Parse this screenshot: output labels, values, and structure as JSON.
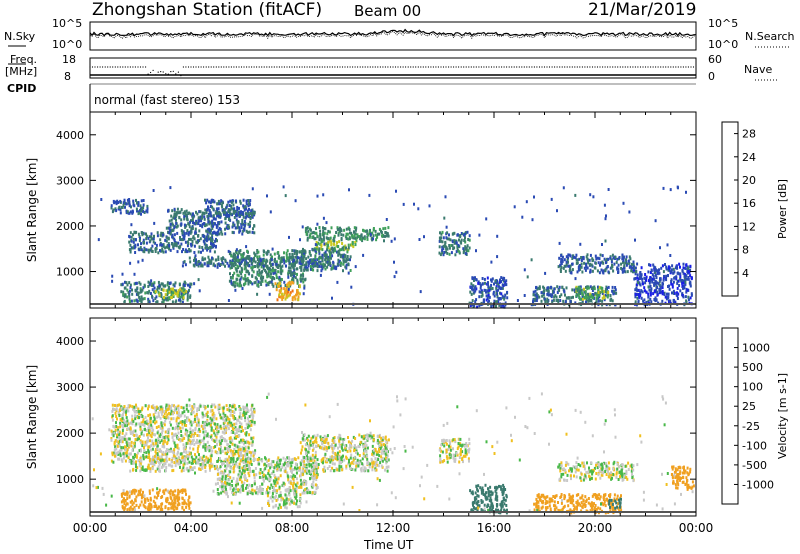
{
  "header": {
    "title": "Zhongshan Station (fitACF)",
    "beam": "Beam 00",
    "date": "21/Mar/2019"
  },
  "status_panel": {
    "nsky_label": "N.Sky",
    "nsearch_label": "N.Search",
    "left_ticks": [
      "10^5",
      "10^0"
    ],
    "right_ticks": [
      "10^5",
      "10^0"
    ]
  },
  "freq_panel": {
    "freq_label": "Freq.",
    "freq_unit": "[MHz]",
    "nave_label": "Nave",
    "cpid_label": "CPID",
    "left_ticks": [
      "18",
      "8"
    ],
    "right_ticks": [
      "60",
      "0"
    ]
  },
  "mode_text": "normal (fast stereo) 153",
  "colors": {
    "power_scale": [
      "#1a1ee6",
      "#2a4ab4",
      "#3a7a6e",
      "#3fa05a",
      "#c9c820",
      "#f0a020",
      "#f07010",
      "#e01010"
    ],
    "velocity_scale": [
      "#e01010",
      "#f07010",
      "#f0a020",
      "#f0c020",
      "#c8c8c8",
      "#c8c8c8",
      "#48b848",
      "#3a7a6e",
      "#2a4ab4",
      "#1a2ea8"
    ]
  },
  "chart_data": [
    {
      "type": "heatmap",
      "name": "power",
      "ylabel": "Slant Range [km]",
      "yticks": [
        "1000",
        "2000",
        "3000",
        "4000"
      ],
      "ylim": [
        200,
        4500
      ],
      "colorbar_label": "Power [dB]",
      "colorbar_ticks": [
        "4",
        "8",
        "12",
        "16",
        "20",
        "24",
        "28"
      ],
      "colorbar_range": [
        0,
        30
      ],
      "echo_regions": [
        {
          "t": [
            0.8,
            2.3
          ],
          "r": [
            2300,
            2600
          ],
          "v": 7
        },
        {
          "t": [
            1.5,
            5.0
          ],
          "r": [
            1450,
            1900
          ],
          "v": 8
        },
        {
          "t": [
            3.0,
            6.5
          ],
          "r": [
            1850,
            2400
          ],
          "v": 8
        },
        {
          "t": [
            4.5,
            6.5
          ],
          "r": [
            2250,
            2600
          ],
          "v": 7
        },
        {
          "t": [
            1.2,
            4.0
          ],
          "r": [
            350,
            800
          ],
          "v": 9
        },
        {
          "t": [
            2.5,
            3.8
          ],
          "r": [
            450,
            650
          ],
          "v": 15
        },
        {
          "t": [
            5.5,
            8.5
          ],
          "r": [
            700,
            1500
          ],
          "v": 10
        },
        {
          "t": [
            7.3,
            8.3
          ],
          "r": [
            400,
            800
          ],
          "v": 20
        },
        {
          "t": [
            3.5,
            9.5
          ],
          "r": [
            1150,
            1350
          ],
          "v": 8
        },
        {
          "t": [
            8.5,
            11.8
          ],
          "r": [
            1700,
            2000
          ],
          "v": 11
        },
        {
          "t": [
            8.8,
            10.5
          ],
          "r": [
            1500,
            1700
          ],
          "v": 15
        },
        {
          "t": [
            8.3,
            10.3
          ],
          "r": [
            1050,
            1550
          ],
          "v": 9
        },
        {
          "t": [
            13.8,
            15.0
          ],
          "r": [
            1400,
            1900
          ],
          "v": 9
        },
        {
          "t": [
            15.0,
            16.5
          ],
          "r": [
            250,
            900
          ],
          "v": 6
        },
        {
          "t": [
            17.5,
            20.8
          ],
          "r": [
            300,
            700
          ],
          "v": 8
        },
        {
          "t": [
            19.2,
            20.5
          ],
          "r": [
            400,
            700
          ],
          "v": 14
        },
        {
          "t": [
            18.5,
            21.5
          ],
          "r": [
            1000,
            1400
          ],
          "v": 7
        },
        {
          "t": [
            21.5,
            23.8
          ],
          "r": [
            300,
            1200
          ],
          "v": 5
        }
      ]
    },
    {
      "type": "heatmap",
      "name": "velocity",
      "ylabel": "Slant Range [km]",
      "yticks": [
        "1000",
        "2000",
        "3000",
        "4000"
      ],
      "ylim": [
        200,
        4500
      ],
      "colorbar_label": "Velocity [m s-1]",
      "colorbar_ticks": [
        "-1000",
        "-500",
        "-100",
        "-25",
        "25",
        "100",
        "500",
        "1000"
      ],
      "colorbar_range": [
        -1250,
        1250
      ],
      "echo_regions": [
        {
          "t": [
            0.8,
            6.5
          ],
          "r": [
            1400,
            2650
          ],
          "v": 0
        },
        {
          "t": [
            1.5,
            5.0
          ],
          "r": [
            1200,
            1450
          ],
          "v": 0
        },
        {
          "t": [
            5.0,
            9.0
          ],
          "r": [
            700,
            1500
          ],
          "v": 10
        },
        {
          "t": [
            8.3,
            11.8
          ],
          "r": [
            1200,
            2000
          ],
          "v": 0
        },
        {
          "t": [
            1.2,
            4.0
          ],
          "r": [
            350,
            800
          ],
          "v": -300
        },
        {
          "t": [
            7.0,
            8.3
          ],
          "r": [
            400,
            700
          ],
          "v": 20
        },
        {
          "t": [
            13.8,
            15.0
          ],
          "r": [
            1400,
            1900
          ],
          "v": 0
        },
        {
          "t": [
            15.0,
            16.5
          ],
          "r": [
            300,
            900
          ],
          "v": 300
        },
        {
          "t": [
            17.5,
            19.5
          ],
          "r": [
            300,
            700
          ],
          "v": -200
        },
        {
          "t": [
            19.5,
            21.0
          ],
          "r": [
            300,
            700
          ],
          "v": -400
        },
        {
          "t": [
            18.5,
            21.5
          ],
          "r": [
            1000,
            1400
          ],
          "v": 0
        },
        {
          "t": [
            20.5,
            21.0
          ],
          "r": [
            400,
            600
          ],
          "v": 200
        },
        {
          "t": [
            23.0,
            23.9
          ],
          "r": [
            800,
            1300
          ],
          "v": -350
        }
      ]
    }
  ],
  "time_axis": {
    "label": "Time UT",
    "ticks": [
      "00:00",
      "04:00",
      "08:00",
      "12:00",
      "16:00",
      "20:00",
      "00:00"
    ],
    "range_hours": [
      0,
      24
    ]
  }
}
